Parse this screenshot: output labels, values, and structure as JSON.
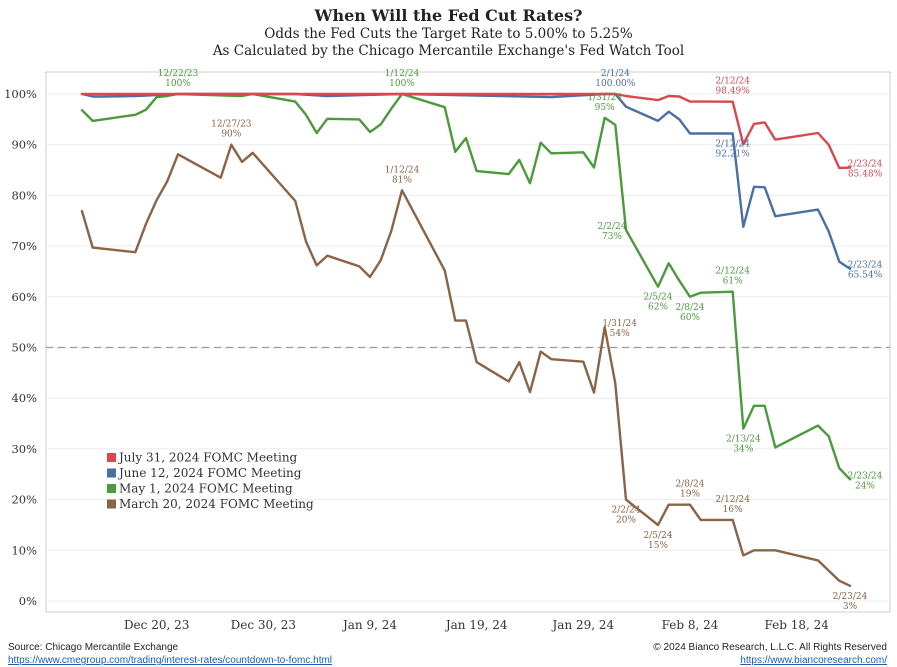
{
  "header": {
    "title": "When Will the Fed Cut Rates?",
    "subtitle1": "Odds the Fed Cuts the Target Rate to 5.00% to 5.25%",
    "subtitle2": "As Calculated by the Chicago Mercantile Exchange's Fed Watch Tool"
  },
  "footer": {
    "source": "Source: Chicago Mercantile Exchange",
    "source_url": "https://www.cmegroup.com/trading/interest-rates/countdown-to-fomc.html",
    "copyright": "© 2024 Bianco Research, L.L.C. All Rights Reserved",
    "site_url": "https://www.biancoresearch.com/"
  },
  "chart_data": {
    "type": "line",
    "title": "When Will the Fed Cut Rates?",
    "xlabel": "",
    "ylabel": "",
    "x_range": [
      "12/13/23",
      "2/23/24"
    ],
    "ylim": [
      0,
      100
    ],
    "yticks": [
      0,
      10,
      20,
      30,
      40,
      50,
      60,
      70,
      80,
      90,
      100
    ],
    "ytick_labels": [
      "0%",
      "10%",
      "20%",
      "30%",
      "40%",
      "50%",
      "60%",
      "70%",
      "80%",
      "90%",
      "100%"
    ],
    "xticks": [
      {
        "date": "12/20/23",
        "label": "Dec 20, 23"
      },
      {
        "date": "12/30/23",
        "label": "Dec 30, 23"
      },
      {
        "date": "1/9/24",
        "label": "Jan 9, 24"
      },
      {
        "date": "1/19/24",
        "label": "Jan 19, 24"
      },
      {
        "date": "1/29/24",
        "label": "Jan 29, 24"
      },
      {
        "date": "2/8/24",
        "label": "Feb 8, 24"
      },
      {
        "date": "2/18/24",
        "label": "Feb 18, 24"
      }
    ],
    "reference_line": {
      "y": 50,
      "style": "dashed"
    },
    "legend_position": "bottom-left",
    "series": [
      {
        "name": "July 31, 2024 FOMC Meeting",
        "color": "#d9474f",
        "points": [
          [
            "12/13/23",
            100
          ],
          [
            "12/14/23",
            100
          ],
          [
            "12/15/23",
            100
          ],
          [
            "12/18/23",
            100
          ],
          [
            "12/22/23",
            100
          ],
          [
            "12/29/23",
            100
          ],
          [
            "1/12/24",
            100
          ],
          [
            "1/31/24",
            100
          ],
          [
            "2/1/24",
            100
          ],
          [
            "2/2/24",
            99.6
          ],
          [
            "2/5/24",
            98.8
          ],
          [
            "2/6/24",
            99.6
          ],
          [
            "2/7/24",
            99.5
          ],
          [
            "2/8/24",
            98.5
          ],
          [
            "2/9/24",
            98.5
          ],
          [
            "2/12/24",
            98.49
          ],
          [
            "2/13/24",
            90.1
          ],
          [
            "2/14/24",
            94.1
          ],
          [
            "2/15/24",
            94.4
          ],
          [
            "2/16/24",
            91
          ],
          [
            "2/20/24",
            92.3
          ],
          [
            "2/21/24",
            90
          ],
          [
            "2/22/24",
            85.4
          ],
          [
            "2/23/24",
            85.48
          ]
        ]
      },
      {
        "name": "June 12, 2024 FOMC Meeting",
        "color": "#4a6fa5",
        "points": [
          [
            "12/13/23",
            100
          ],
          [
            "12/14/23",
            99.5
          ],
          [
            "12/15/23",
            99.5
          ],
          [
            "12/18/23",
            99.6
          ],
          [
            "12/22/23",
            100
          ],
          [
            "12/29/23",
            100
          ],
          [
            "1/2/24",
            100
          ],
          [
            "1/5/24",
            99.6
          ],
          [
            "1/12/24",
            100
          ],
          [
            "1/26/24",
            99.4
          ],
          [
            "1/31/24",
            100
          ],
          [
            "2/1/24",
            100
          ],
          [
            "2/2/24",
            97.5
          ],
          [
            "2/5/24",
            94.7
          ],
          [
            "2/6/24",
            96.5
          ],
          [
            "2/7/24",
            95
          ],
          [
            "2/8/24",
            92.2
          ],
          [
            "2/9/24",
            92.2
          ],
          [
            "2/12/24",
            92.21
          ],
          [
            "2/13/24",
            73.8
          ],
          [
            "2/14/24",
            81.7
          ],
          [
            "2/15/24",
            81.6
          ],
          [
            "2/16/24",
            75.9
          ],
          [
            "2/20/24",
            77.2
          ],
          [
            "2/21/24",
            72.9
          ],
          [
            "2/22/24",
            66.9
          ],
          [
            "2/23/24",
            65.54
          ]
        ]
      },
      {
        "name": "May 1, 2024 FOMC Meeting",
        "color": "#4b9a3c",
        "points": [
          [
            "12/13/23",
            96.8
          ],
          [
            "12/14/23",
            94.7
          ],
          [
            "12/18/23",
            95.9
          ],
          [
            "12/19/23",
            96.9
          ],
          [
            "12/20/23",
            99.4
          ],
          [
            "12/21/23",
            99.6
          ],
          [
            "12/22/23",
            100
          ],
          [
            "12/28/23",
            99.6
          ],
          [
            "12/29/23",
            100
          ],
          [
            "1/2/24",
            98.5
          ],
          [
            "1/3/24",
            95.9
          ],
          [
            "1/4/24",
            92.3
          ],
          [
            "1/5/24",
            95.1
          ],
          [
            "1/8/24",
            95
          ],
          [
            "1/9/24",
            92.5
          ],
          [
            "1/10/24",
            94
          ],
          [
            "1/11/24",
            97.1
          ],
          [
            "1/12/24",
            100
          ],
          [
            "1/16/24",
            97.4
          ],
          [
            "1/17/24",
            88.6
          ],
          [
            "1/18/24",
            91.3
          ],
          [
            "1/19/24",
            84.8
          ],
          [
            "1/22/24",
            84.2
          ],
          [
            "1/23/24",
            87
          ],
          [
            "1/24/24",
            82.4
          ],
          [
            "1/25/24",
            90.4
          ],
          [
            "1/26/24",
            88.3
          ],
          [
            "1/29/24",
            88.5
          ],
          [
            "1/30/24",
            85.5
          ],
          [
            "1/31/24",
            95.3
          ],
          [
            "2/1/24",
            93.9
          ],
          [
            "2/2/24",
            73.2
          ],
          [
            "2/5/24",
            62
          ],
          [
            "2/6/24",
            66.6
          ],
          [
            "2/7/24",
            63.2
          ],
          [
            "2/8/24",
            60
          ],
          [
            "2/9/24",
            60.8
          ],
          [
            "2/12/24",
            61
          ],
          [
            "2/13/24",
            34
          ],
          [
            "2/14/24",
            38.5
          ],
          [
            "2/15/24",
            38.5
          ],
          [
            "2/16/24",
            30.3
          ],
          [
            "2/20/24",
            34.6
          ],
          [
            "2/21/24",
            32.5
          ],
          [
            "2/22/24",
            26.2
          ],
          [
            "2/23/24",
            24
          ]
        ]
      },
      {
        "name": "March 20, 2024 FOMC Meeting",
        "color": "#8b6347",
        "points": [
          [
            "12/13/23",
            76.9
          ],
          [
            "12/14/23",
            69.7
          ],
          [
            "12/18/23",
            68.8
          ],
          [
            "12/19/23",
            74.4
          ],
          [
            "12/20/23",
            79.1
          ],
          [
            "12/21/23",
            82.8
          ],
          [
            "12/22/23",
            88.1
          ],
          [
            "12/26/23",
            83.5
          ],
          [
            "12/27/23",
            90
          ],
          [
            "12/28/23",
            86.6
          ],
          [
            "12/29/23",
            88.4
          ],
          [
            "1/2/24",
            78.9
          ],
          [
            "1/3/24",
            70.9
          ],
          [
            "1/4/24",
            66.2
          ],
          [
            "1/5/24",
            68.1
          ],
          [
            "1/8/24",
            66
          ],
          [
            "1/9/24",
            63.9
          ],
          [
            "1/10/24",
            67.2
          ],
          [
            "1/11/24",
            73
          ],
          [
            "1/12/24",
            81
          ],
          [
            "1/16/24",
            65.2
          ],
          [
            "1/17/24",
            55.3
          ],
          [
            "1/18/24",
            55.3
          ],
          [
            "1/19/24",
            47.1
          ],
          [
            "1/22/24",
            43.3
          ],
          [
            "1/23/24",
            47.1
          ],
          [
            "1/24/24",
            41.2
          ],
          [
            "1/25/24",
            49.2
          ],
          [
            "1/26/24",
            47.7
          ],
          [
            "1/29/24",
            47.2
          ],
          [
            "1/30/24",
            41.1
          ],
          [
            "1/31/24",
            54
          ],
          [
            "2/1/24",
            42.9
          ],
          [
            "2/2/24",
            20
          ],
          [
            "2/5/24",
            15
          ],
          [
            "2/6/24",
            19
          ],
          [
            "2/7/24",
            19
          ],
          [
            "2/8/24",
            19
          ],
          [
            "2/9/24",
            16
          ],
          [
            "2/12/24",
            16
          ],
          [
            "2/13/24",
            9
          ],
          [
            "2/14/24",
            10
          ],
          [
            "2/15/24",
            10
          ],
          [
            "2/16/24",
            10
          ],
          [
            "2/20/24",
            8
          ],
          [
            "2/21/24",
            6
          ],
          [
            "2/22/24",
            4
          ],
          [
            "2/23/24",
            3
          ]
        ]
      }
    ],
    "annotations": [
      {
        "series": 2,
        "date": "12/22/23",
        "y": 100,
        "text1": "12/22/23",
        "text2": "100%",
        "pos": "above"
      },
      {
        "series": 2,
        "date": "1/12/24",
        "y": 100,
        "text1": "1/12/24",
        "text2": "100%",
        "pos": "above"
      },
      {
        "series": 1,
        "date": "2/1/24",
        "y": 100,
        "text1": "2/1/24",
        "text2": "100.00%",
        "pos": "above"
      },
      {
        "series": 0,
        "date": "2/12/24",
        "y": 98.49,
        "text1": "2/12/24",
        "text2": "98.49%",
        "pos": "above"
      },
      {
        "series": 1,
        "date": "2/12/24",
        "y": 92.21,
        "text1": "2/12/24",
        "text2": "92.21%",
        "pos": "below"
      },
      {
        "series": 0,
        "date": "2/23/24",
        "y": 85.48,
        "text1": "2/23/24",
        "text2": "85.48%",
        "pos": "right"
      },
      {
        "series": 1,
        "date": "2/23/24",
        "y": 65.54,
        "text1": "2/23/24",
        "text2": "65.54%",
        "pos": "right"
      },
      {
        "series": 3,
        "date": "12/27/23",
        "y": 90,
        "text1": "12/27/23",
        "text2": "90%",
        "pos": "above"
      },
      {
        "series": 3,
        "date": "1/12/24",
        "y": 81,
        "text1": "1/12/24",
        "text2": "81%",
        "pos": "above"
      },
      {
        "series": 2,
        "date": "1/31/24",
        "y": 95.3,
        "text1": "1/31/24",
        "text2": "95%",
        "pos": "above"
      },
      {
        "series": 2,
        "date": "2/2/24",
        "y": 73.2,
        "text1": "2/2/24",
        "text2": "73%",
        "pos": "left"
      },
      {
        "series": 2,
        "date": "2/5/24",
        "y": 62,
        "text1": "2/5/24",
        "text2": "62%",
        "pos": "below"
      },
      {
        "series": 2,
        "date": "2/8/24",
        "y": 60,
        "text1": "2/8/24",
        "text2": "60%",
        "pos": "below"
      },
      {
        "series": 2,
        "date": "2/12/24",
        "y": 61,
        "text1": "2/12/24",
        "text2": "61%",
        "pos": "above"
      },
      {
        "series": 3,
        "date": "1/31/24",
        "y": 54,
        "text1": "1/31/24",
        "text2": "54%",
        "pos": "right"
      },
      {
        "series": 2,
        "date": "2/13/24",
        "y": 34,
        "text1": "2/13/24",
        "text2": "34%",
        "pos": "below"
      },
      {
        "series": 2,
        "date": "2/23/24",
        "y": 24,
        "text1": "2/23/24",
        "text2": "24%",
        "pos": "right"
      },
      {
        "series": 3,
        "date": "2/2/24",
        "y": 20,
        "text1": "2/2/24",
        "text2": "20%",
        "pos": "below"
      },
      {
        "series": 3,
        "date": "2/8/24",
        "y": 19,
        "text1": "2/8/24",
        "text2": "19%",
        "pos": "above"
      },
      {
        "series": 3,
        "date": "2/5/24",
        "y": 15,
        "text1": "2/5/24",
        "text2": "15%",
        "pos": "below"
      },
      {
        "series": 3,
        "date": "2/12/24",
        "y": 16,
        "text1": "2/12/24",
        "text2": "16%",
        "pos": "above"
      },
      {
        "series": 3,
        "date": "2/23/24",
        "y": 3,
        "text1": "2/23/24",
        "text2": "3%",
        "pos": "below"
      }
    ],
    "legend": [
      "July 31, 2024 FOMC Meeting",
      "June 12, 2024 FOMC Meeting",
      "May 1, 2024 FOMC Meeting",
      "March 20, 2024 FOMC Meeting"
    ]
  }
}
